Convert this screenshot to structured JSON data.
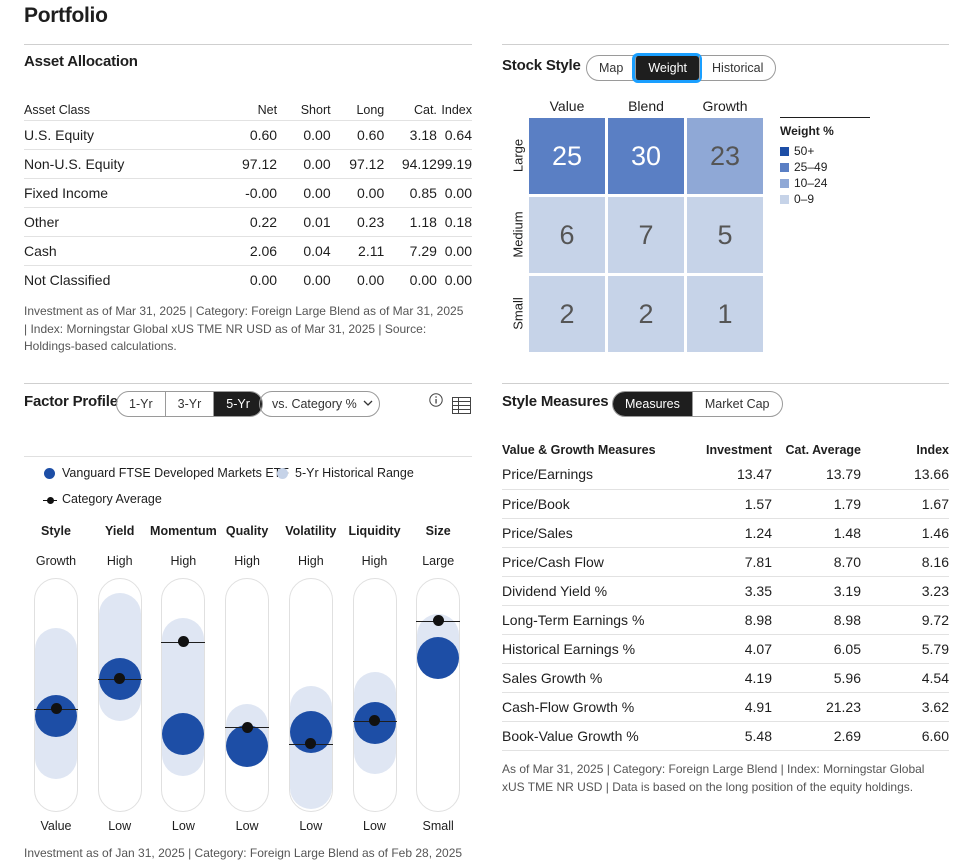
{
  "page_title": "Portfolio",
  "asset_allocation": {
    "title": "Asset Allocation",
    "columns": [
      "Asset Class",
      "Net",
      "Short",
      "Long",
      "Cat.",
      "Index"
    ],
    "rows": [
      [
        "U.S. Equity",
        "0.60",
        "0.00",
        "0.60",
        "3.18",
        "0.64"
      ],
      [
        "Non-U.S. Equity",
        "97.12",
        "0.00",
        "97.12",
        "94.12",
        "99.19"
      ],
      [
        "Fixed Income",
        "-0.00",
        "0.00",
        "0.00",
        "0.85",
        "0.00"
      ],
      [
        "Other",
        "0.22",
        "0.01",
        "0.23",
        "1.18",
        "0.18"
      ],
      [
        "Cash",
        "2.06",
        "0.04",
        "2.11",
        "7.29",
        "0.00"
      ],
      [
        "Not Classified",
        "0.00",
        "0.00",
        "0.00",
        "0.00",
        "0.00"
      ]
    ],
    "note": "Investment as of Mar 31, 2025 | Category: Foreign Large Blend as of Mar 31, 2025 | Index: Morningstar Global xUS TME NR USD as of Mar 31, 2025 | Source: Holdings-based calculations."
  },
  "stock_style": {
    "title": "Stock Style",
    "tabs": [
      "Map",
      "Weight",
      "Historical"
    ],
    "active_tab": "Weight",
    "col_heads": [
      "Value",
      "Blend",
      "Growth"
    ],
    "row_heads": [
      "Large",
      "Medium",
      "Small"
    ],
    "grid": [
      [
        25,
        30,
        23
      ],
      [
        6,
        7,
        5
      ],
      [
        2,
        2,
        1
      ]
    ],
    "legend_title": "Weight %",
    "legend": [
      {
        "label": "50+",
        "color": "#1d4ea6"
      },
      {
        "label": "25–49",
        "color": "#5a7fc4"
      },
      {
        "label": "10–24",
        "color": "#8fa8d6"
      },
      {
        "label": "0–9",
        "color": "#c6d3e8"
      }
    ]
  },
  "factor_profile": {
    "title": "Factor Profile",
    "periods": [
      "1-Yr",
      "3-Yr",
      "5-Yr"
    ],
    "active_period": "5-Yr",
    "dropdown": "vs. Category %",
    "legend_fund": "Vanguard FTSE Developed Markets ETF",
    "legend_range": "5-Yr Historical Range",
    "legend_cat": "Category Average",
    "factors": [
      {
        "name": "Style",
        "high": "Growth",
        "low": "Value",
        "fund": 0.41,
        "cat": 0.44,
        "range": [
          0.23,
          0.7
        ]
      },
      {
        "name": "Yield",
        "high": "High",
        "low": "Low",
        "fund": 0.57,
        "cat": 0.57,
        "range": [
          0.48,
          0.85
        ]
      },
      {
        "name": "Momentum",
        "high": "High",
        "low": "Low",
        "fund": 0.33,
        "cat": 0.73,
        "range": [
          0.24,
          0.74
        ]
      },
      {
        "name": "Quality",
        "high": "High",
        "low": "Low",
        "fund": 0.28,
        "cat": 0.36,
        "range": [
          0.28,
          0.37
        ]
      },
      {
        "name": "Volatility",
        "high": "High",
        "low": "Low",
        "fund": 0.34,
        "cat": 0.29,
        "range": [
          0.1,
          0.45
        ]
      },
      {
        "name": "Liquidity",
        "high": "High",
        "low": "Low",
        "fund": 0.38,
        "cat": 0.39,
        "range": [
          0.25,
          0.51
        ]
      },
      {
        "name": "Size",
        "high": "Large",
        "low": "Small",
        "fund": 0.66,
        "cat": 0.82,
        "range": [
          0.66,
          0.76
        ]
      }
    ],
    "note": "Investment as of Jan 31, 2025 | Category: Foreign Large Blend as of Feb 28, 2025"
  },
  "style_measures": {
    "title": "Style Measures",
    "tabs": [
      "Measures",
      "Market Cap"
    ],
    "active_tab": "Measures",
    "columns": [
      "Value & Growth Measures",
      "Investment",
      "Cat. Average",
      "Index"
    ],
    "rows": [
      [
        "Price/Earnings",
        "13.47",
        "13.79",
        "13.66"
      ],
      [
        "Price/Book",
        "1.57",
        "1.79",
        "1.67"
      ],
      [
        "Price/Sales",
        "1.24",
        "1.48",
        "1.46"
      ],
      [
        "Price/Cash Flow",
        "7.81",
        "8.70",
        "8.16"
      ],
      [
        "Dividend Yield %",
        "3.35",
        "3.19",
        "3.23"
      ],
      [
        "Long-Term Earnings %",
        "8.98",
        "8.98",
        "9.72"
      ],
      [
        "Historical Earnings %",
        "4.07",
        "6.05",
        "5.79"
      ],
      [
        "Sales Growth %",
        "4.19",
        "5.96",
        "4.54"
      ],
      [
        "Cash-Flow Growth %",
        "4.91",
        "21.23",
        "3.62"
      ],
      [
        "Book-Value Growth %",
        "5.48",
        "2.69",
        "6.60"
      ]
    ],
    "note": "As of Mar 31, 2025 | Category: Foreign Large Blend | Index: Morningstar Global xUS TME NR USD | Data is based on the long position of the equity holdings."
  }
}
